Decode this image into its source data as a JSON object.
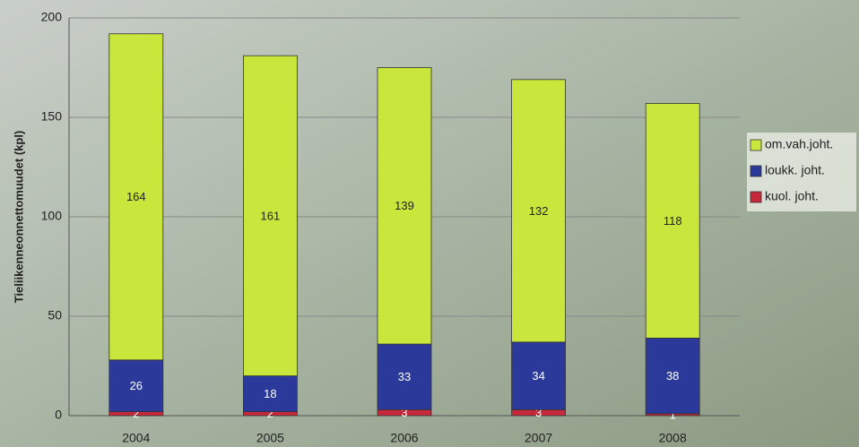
{
  "chart_data": {
    "type": "stacked-bar",
    "y_label": "Tieliikenneonnettomuudet (kpl)",
    "categories": [
      "2004",
      "2005",
      "2006",
      "2007",
      "2008"
    ],
    "series": [
      {
        "name": "kuol. joht.",
        "color": "#c8283c",
        "values": [
          2,
          2,
          3,
          3,
          1
        ]
      },
      {
        "name": "loukk. joht.",
        "color": "#2b3a9a",
        "values": [
          26,
          18,
          33,
          34,
          38
        ]
      },
      {
        "name": "om.vah.joht.",
        "color": "#c8e63c",
        "values": [
          164,
          161,
          139,
          132,
          118
        ]
      }
    ],
    "ylim": [
      0,
      200
    ],
    "yticks": [
      0,
      50,
      100,
      150,
      200
    ],
    "grid": true
  }
}
